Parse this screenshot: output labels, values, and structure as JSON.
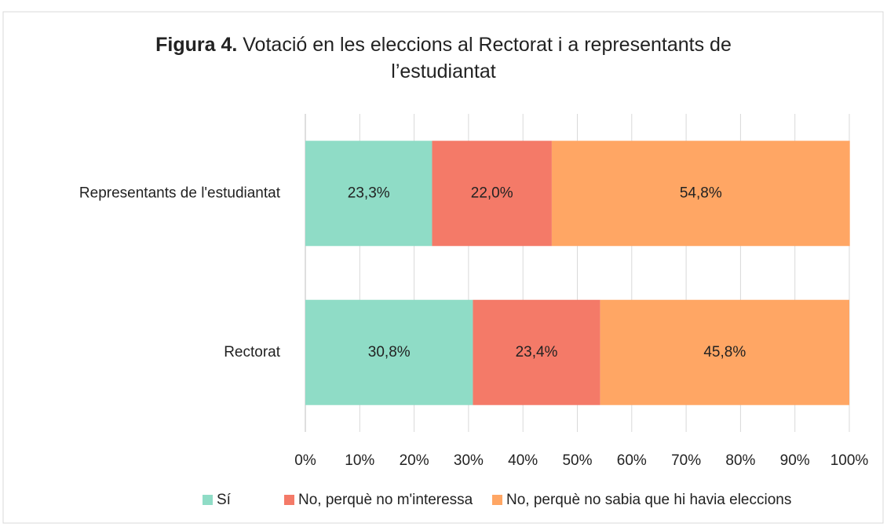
{
  "chart_data": {
    "type": "stacked_barh",
    "figure_label": "Figura 4.",
    "title": "Votació en les eleccions al Rectorat i a representants de l’estudiantat",
    "categories": [
      "Representants de l'estudiantat",
      "Rectorat"
    ],
    "series": [
      {
        "name": "Sí",
        "color": "#8fdcc6",
        "values": [
          23.3,
          30.8
        ],
        "value_labels": [
          "23,3%",
          "30,8%"
        ]
      },
      {
        "name": "No, perquè no m'interessa",
        "color": "#f47a68",
        "values": [
          22.0,
          23.4
        ],
        "value_labels": [
          "22,0%",
          "23,4%"
        ]
      },
      {
        "name": "No, perquè no sabia que hi havia eleccions",
        "color": "#ffa664",
        "values": [
          54.8,
          45.8
        ],
        "value_labels": [
          "54,8%",
          "45,8%"
        ]
      }
    ],
    "xlim": [
      0,
      100
    ],
    "xticks": [
      {
        "value": 0,
        "label": "0%"
      },
      {
        "value": 10,
        "label": "10%"
      },
      {
        "value": 20,
        "label": "20%"
      },
      {
        "value": 30,
        "label": "30%"
      },
      {
        "value": 40,
        "label": "40%"
      },
      {
        "value": 50,
        "label": "50%"
      },
      {
        "value": 60,
        "label": "60%"
      },
      {
        "value": 70,
        "label": "70%"
      },
      {
        "value": 80,
        "label": "80%"
      },
      {
        "value": 90,
        "label": "90%"
      },
      {
        "value": 100,
        "label": "100%"
      }
    ],
    "grid": true,
    "legend": "bottom"
  }
}
